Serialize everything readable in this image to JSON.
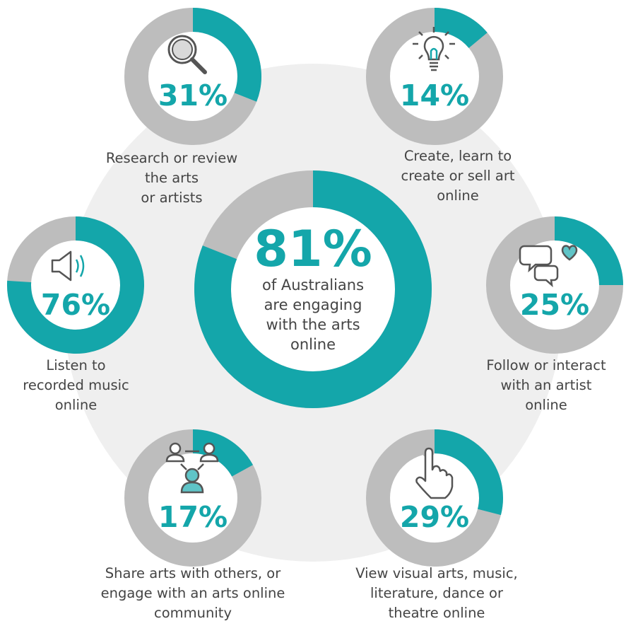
{
  "colors": {
    "accent": "#14a6aa",
    "track": "#bdbdbd",
    "background_circle": "#efefef",
    "text": "#444444",
    "icon": "#555555"
  },
  "center": {
    "value": "81%",
    "description": "of Australians\nare engaging\nwith the arts\nonline"
  },
  "chart_data": {
    "type": "pie",
    "charts": [
      {
        "label": "of Australians are engaging with the arts online",
        "value": 81,
        "display": "81%"
      },
      {
        "label": "Research or review the arts or artists",
        "value": 31,
        "display": "31%",
        "icon": "magnifier-icon"
      },
      {
        "label": "Create, learn to create or sell art online",
        "value": 14,
        "display": "14%",
        "icon": "lightbulb-icon"
      },
      {
        "label": "Follow or interact with an artist online",
        "value": 25,
        "display": "25%",
        "icon": "chat-heart-icon"
      },
      {
        "label": "View visual arts, music, literature, dance or theatre online",
        "value": 29,
        "display": "29%",
        "icon": "pointer-hand-icon"
      },
      {
        "label": "Share arts with others, or engage with an arts online community",
        "value": 17,
        "display": "17%",
        "icon": "people-network-icon"
      },
      {
        "label": "Listen to recorded music online",
        "value": 76,
        "display": "76%",
        "icon": "speaker-icon"
      }
    ]
  },
  "labels": {
    "research": "Research or review\nthe arts\nor artists",
    "create": "Create, learn to\ncreate or sell art\nonline",
    "follow": "Follow or interact\nwith an artist\nonline",
    "view": "View visual arts, music,\nliterature, dance or\ntheatre online",
    "share": "Share arts with others, or\nengage with an arts online\ncommunity",
    "listen": "Listen to\nrecorded music\nonline"
  }
}
